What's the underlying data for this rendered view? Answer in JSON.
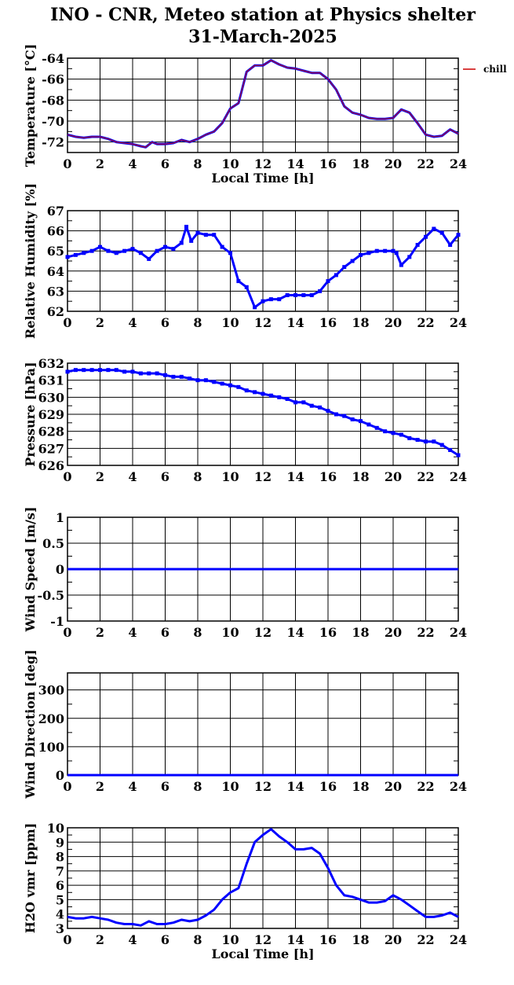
{
  "title_line1": "INO - CNR, Meteo station at Physics shelter",
  "title_line2": "31-March-2025",
  "colors": {
    "series": "#0000ff",
    "chill": "#cc0000",
    "grid": "#000000",
    "background": "#ffffff"
  },
  "chart_data": [
    {
      "type": "line",
      "id": "temperature",
      "ylabel": "Temperature [°C]",
      "xlabel": "Local Time [h]",
      "xlim": [
        0,
        24
      ],
      "ylim": [
        -73,
        -64
      ],
      "xticks": [
        "0",
        "2",
        "4",
        "6",
        "8",
        "10",
        "12",
        "14",
        "16",
        "18",
        "20",
        "22",
        "24"
      ],
      "yticks": [
        "-72",
        "-70",
        "-68",
        "-66",
        "-64"
      ],
      "ytick_values": [
        -72,
        -70,
        -68,
        -66,
        -64
      ],
      "grid": true,
      "legend_entries": [
        "chill"
      ],
      "legend_position": "right-outside-top",
      "series": [
        {
          "color": "#0000ff",
          "x": [
            0,
            0.5,
            1,
            1.5,
            2,
            2.5,
            3,
            3.5,
            4,
            4.5,
            4.8,
            5.2,
            5.5,
            6,
            6.5,
            7,
            7.5,
            8,
            8.5,
            9,
            9.5,
            10,
            10.5,
            11,
            11.5,
            12,
            12.5,
            13,
            13.5,
            14,
            14.5,
            15,
            15.5,
            16,
            16.5,
            17,
            17.5,
            18,
            18.5,
            19,
            19.5,
            20,
            20.5,
            21,
            21.5,
            22,
            22.5,
            23,
            23.5,
            24
          ],
          "y": [
            -71.3,
            -71.5,
            -71.6,
            -71.5,
            -71.5,
            -71.7,
            -72.0,
            -72.1,
            -72.2,
            -72.4,
            -72.5,
            -72.0,
            -72.2,
            -72.2,
            -72.1,
            -71.8,
            -72.0,
            -71.7,
            -71.3,
            -71.0,
            -70.2,
            -68.8,
            -68.3,
            -65.3,
            -64.7,
            -64.7,
            -64.2,
            -64.6,
            -64.9,
            -65.0,
            -65.2,
            -65.4,
            -65.4,
            -66.0,
            -67.0,
            -68.6,
            -69.2,
            -69.4,
            -69.7,
            -69.8,
            -69.8,
            -69.7,
            -68.9,
            -69.2,
            -70.2,
            -71.3,
            -71.5,
            -71.4,
            -70.8,
            -71.2
          ]
        }
      ]
    },
    {
      "type": "scatter",
      "id": "humidity",
      "ylabel": "Relative Humidity [%]",
      "xlim": [
        0,
        24
      ],
      "ylim": [
        62,
        67
      ],
      "xticks": [
        "0",
        "2",
        "4",
        "6",
        "8",
        "10",
        "12",
        "14",
        "16",
        "18",
        "20",
        "22",
        "24"
      ],
      "yticks": [
        "62",
        "63",
        "64",
        "65",
        "66",
        "67"
      ],
      "ytick_values": [
        62,
        63,
        64,
        65,
        66,
        67
      ],
      "grid": true,
      "series": [
        {
          "color": "#0000ff",
          "x": [
            0,
            0.5,
            1,
            1.5,
            2,
            2.5,
            3,
            3.5,
            4,
            4.5,
            5,
            5.5,
            6,
            6.5,
            7,
            7.3,
            7.6,
            8,
            8.5,
            9,
            9.5,
            10,
            10.5,
            11,
            11.5,
            12,
            12.5,
            13,
            13.5,
            14,
            14.5,
            15,
            15.5,
            16,
            16.5,
            17,
            17.5,
            18,
            18.5,
            19,
            19.5,
            20,
            20.2,
            20.5,
            21,
            21.5,
            22,
            22.5,
            23,
            23.5,
            24
          ],
          "y": [
            64.7,
            64.8,
            64.9,
            65.0,
            65.2,
            65.0,
            64.9,
            65.0,
            65.1,
            64.9,
            64.6,
            65.0,
            65.2,
            65.1,
            65.4,
            66.2,
            65.5,
            65.9,
            65.8,
            65.8,
            65.2,
            64.9,
            63.5,
            63.2,
            62.2,
            62.5,
            62.6,
            62.6,
            62.8,
            62.8,
            62.8,
            62.8,
            63.0,
            63.5,
            63.8,
            64.2,
            64.5,
            64.8,
            64.9,
            65.0,
            65.0,
            65.0,
            64.9,
            64.3,
            64.7,
            65.3,
            65.7,
            66.1,
            65.9,
            65.3,
            65.8
          ]
        }
      ]
    },
    {
      "type": "scatter",
      "id": "pressure",
      "ylabel": "Pressure [hPa]",
      "xlim": [
        0,
        24
      ],
      "ylim": [
        626,
        632
      ],
      "xticks": [
        "0",
        "2",
        "4",
        "6",
        "8",
        "10",
        "12",
        "14",
        "16",
        "18",
        "20",
        "22",
        "24"
      ],
      "yticks": [
        "626",
        "627",
        "628",
        "629",
        "630",
        "631",
        "632"
      ],
      "ytick_values": [
        626,
        627,
        628,
        629,
        630,
        631,
        632
      ],
      "grid": true,
      "series": [
        {
          "color": "#0000ff",
          "x": [
            0,
            0.5,
            1,
            1.5,
            2,
            2.5,
            3,
            3.5,
            4,
            4.5,
            5,
            5.5,
            6,
            6.5,
            7,
            7.5,
            8,
            8.5,
            9,
            9.5,
            10,
            10.5,
            11,
            11.5,
            12,
            12.5,
            13,
            13.5,
            14,
            14.5,
            15,
            15.5,
            16,
            16.5,
            17,
            17.5,
            18,
            18.5,
            19,
            19.5,
            20,
            20.5,
            21,
            21.5,
            22,
            22.5,
            23,
            23.5,
            24
          ],
          "y": [
            631.5,
            631.6,
            631.6,
            631.6,
            631.6,
            631.6,
            631.6,
            631.5,
            631.5,
            631.4,
            631.4,
            631.4,
            631.3,
            631.2,
            631.2,
            631.1,
            631.0,
            631.0,
            630.9,
            630.8,
            630.7,
            630.6,
            630.4,
            630.3,
            630.2,
            630.1,
            630.0,
            629.9,
            629.7,
            629.7,
            629.5,
            629.4,
            629.2,
            629.0,
            628.9,
            628.7,
            628.6,
            628.4,
            628.2,
            628.0,
            627.9,
            627.8,
            627.6,
            627.5,
            627.4,
            627.4,
            627.2,
            626.9,
            626.6
          ]
        }
      ]
    },
    {
      "type": "line",
      "id": "wind_speed",
      "ylabel": "Wind Speed [m/s]",
      "xlim": [
        0,
        24
      ],
      "ylim": [
        -1,
        1
      ],
      "xticks": [
        "0",
        "2",
        "4",
        "6",
        "8",
        "10",
        "12",
        "14",
        "16",
        "18",
        "20",
        "22",
        "24"
      ],
      "yticks": [
        "-1",
        "-0.5",
        "0",
        "0.5",
        "1"
      ],
      "ytick_values": [
        -1,
        -0.5,
        0,
        0.5,
        1
      ],
      "grid": true,
      "series": [
        {
          "color": "#0000ff",
          "x": [
            0,
            24
          ],
          "y": [
            0,
            0
          ]
        }
      ]
    },
    {
      "type": "line",
      "id": "wind_direction",
      "ylabel": "Wind Direction [deg]",
      "xlim": [
        0,
        24
      ],
      "ylim": [
        0,
        360
      ],
      "xticks": [
        "0",
        "2",
        "4",
        "6",
        "8",
        "10",
        "12",
        "14",
        "16",
        "18",
        "20",
        "22",
        "24"
      ],
      "yticks": [
        "0",
        "100",
        "200",
        "300"
      ],
      "ytick_values": [
        0,
        100,
        200,
        300
      ],
      "grid": true,
      "series": [
        {
          "color": "#0000ff",
          "x": [
            0,
            24
          ],
          "y": [
            0,
            0
          ]
        }
      ]
    },
    {
      "type": "line",
      "id": "h2o_vmr",
      "ylabel": "H2O vmr [ppm]",
      "xlabel": "Local Time [h]",
      "xlim": [
        0,
        24
      ],
      "ylim": [
        3,
        10
      ],
      "xticks": [
        "0",
        "2",
        "4",
        "6",
        "8",
        "10",
        "12",
        "14",
        "16",
        "18",
        "20",
        "22",
        "24"
      ],
      "yticks": [
        "3",
        "4",
        "5",
        "6",
        "7",
        "8",
        "9",
        "10"
      ],
      "ytick_values": [
        3,
        4,
        5,
        6,
        7,
        8,
        9,
        10
      ],
      "grid": true,
      "series": [
        {
          "color": "#0000ff",
          "x": [
            0,
            0.5,
            1,
            1.5,
            2,
            2.5,
            3,
            3.5,
            4,
            4.5,
            5,
            5.5,
            6,
            6.5,
            7,
            7.5,
            8,
            8.5,
            9,
            9.5,
            10,
            10.5,
            11,
            11.5,
            12,
            12.5,
            13,
            13.5,
            14,
            14.5,
            15,
            15.5,
            16,
            16.5,
            17,
            17.5,
            18,
            18.5,
            19,
            19.5,
            20,
            20.5,
            21,
            21.5,
            22,
            22.5,
            23,
            23.5,
            24
          ],
          "y": [
            3.8,
            3.7,
            3.7,
            3.8,
            3.7,
            3.6,
            3.4,
            3.3,
            3.3,
            3.2,
            3.5,
            3.3,
            3.3,
            3.4,
            3.6,
            3.5,
            3.6,
            3.9,
            4.3,
            5.0,
            5.5,
            5.8,
            7.5,
            9.0,
            9.5,
            9.9,
            9.4,
            9.0,
            8.5,
            8.5,
            8.6,
            8.2,
            7.2,
            6.0,
            5.3,
            5.2,
            5.0,
            4.8,
            4.8,
            4.9,
            5.3,
            5.0,
            4.6,
            4.2,
            3.8,
            3.8,
            3.9,
            4.1,
            3.8
          ]
        }
      ]
    }
  ]
}
